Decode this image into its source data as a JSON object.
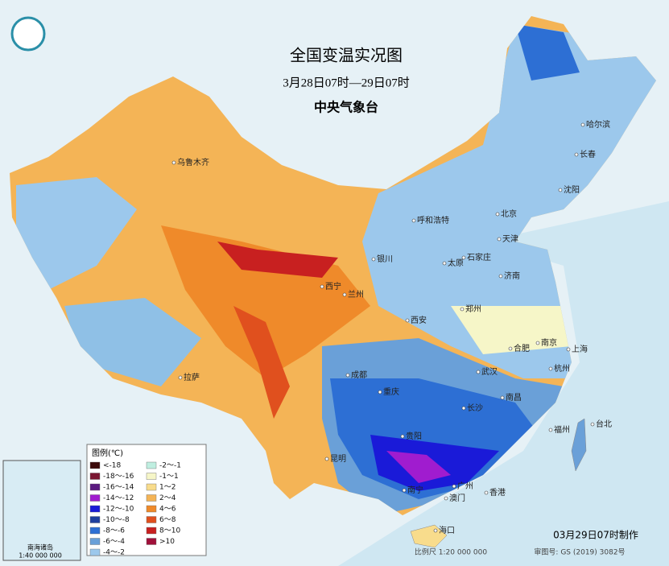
{
  "header": {
    "title": "全国变温实况图",
    "subtitle": "3月28日07时—29日07时",
    "agency": "中央气象台"
  },
  "legend": {
    "title": "图例(℃)",
    "items": [
      {
        "label": "<-18",
        "color": "#3b0a0a"
      },
      {
        "label": "-18～-16",
        "color": "#7a1530"
      },
      {
        "label": "-16～-14",
        "color": "#5b1a80"
      },
      {
        "label": "-14～-12",
        "color": "#a01ccf"
      },
      {
        "label": "-12～-10",
        "color": "#1a1ad8"
      },
      {
        "label": "-10～-8",
        "color": "#1f3f9e"
      },
      {
        "label": "-8～-6",
        "color": "#2d6fd4"
      },
      {
        "label": "-6～-4",
        "color": "#6aa0d8"
      },
      {
        "label": "-4～-2",
        "color": "#9cc8ec"
      },
      {
        "label": "-2～-1",
        "color": "#bfeee0"
      },
      {
        "label": "-1～1",
        "color": "#f6f6c8"
      },
      {
        "label": "1～2",
        "color": "#f8dc8c"
      },
      {
        "label": "2～4",
        "color": "#f4b456"
      },
      {
        "label": "4～6",
        "color": "#ef8a2a"
      },
      {
        "label": "6～8",
        "color": "#e0501e"
      },
      {
        "label": "8～10",
        "color": "#c82020"
      },
      {
        "label": ">10",
        "color": "#a0103a"
      }
    ]
  },
  "cities": [
    "乌鲁木齐",
    "哈尔滨",
    "长春",
    "沈阳",
    "呼和浩特",
    "北京",
    "天津",
    "银川",
    "太原",
    "石家庄",
    "济南",
    "西宁",
    "兰州",
    "郑州",
    "西安",
    "合肥",
    "南京",
    "上海",
    "杭州",
    "武汉",
    "成都",
    "重庆",
    "拉萨",
    "长沙",
    "南昌",
    "福州",
    "台北",
    "贵阳",
    "昆明",
    "南宁",
    "广州",
    "香港",
    "澳门",
    "海口"
  ],
  "inset": {
    "title": "南海诸岛",
    "scale": "1:40 000 000"
  },
  "footer": {
    "made": "03月29日07时制作",
    "scale": "比例尺 1:20 000 000",
    "map_number": "审图号: GS (2019) 3082号"
  }
}
